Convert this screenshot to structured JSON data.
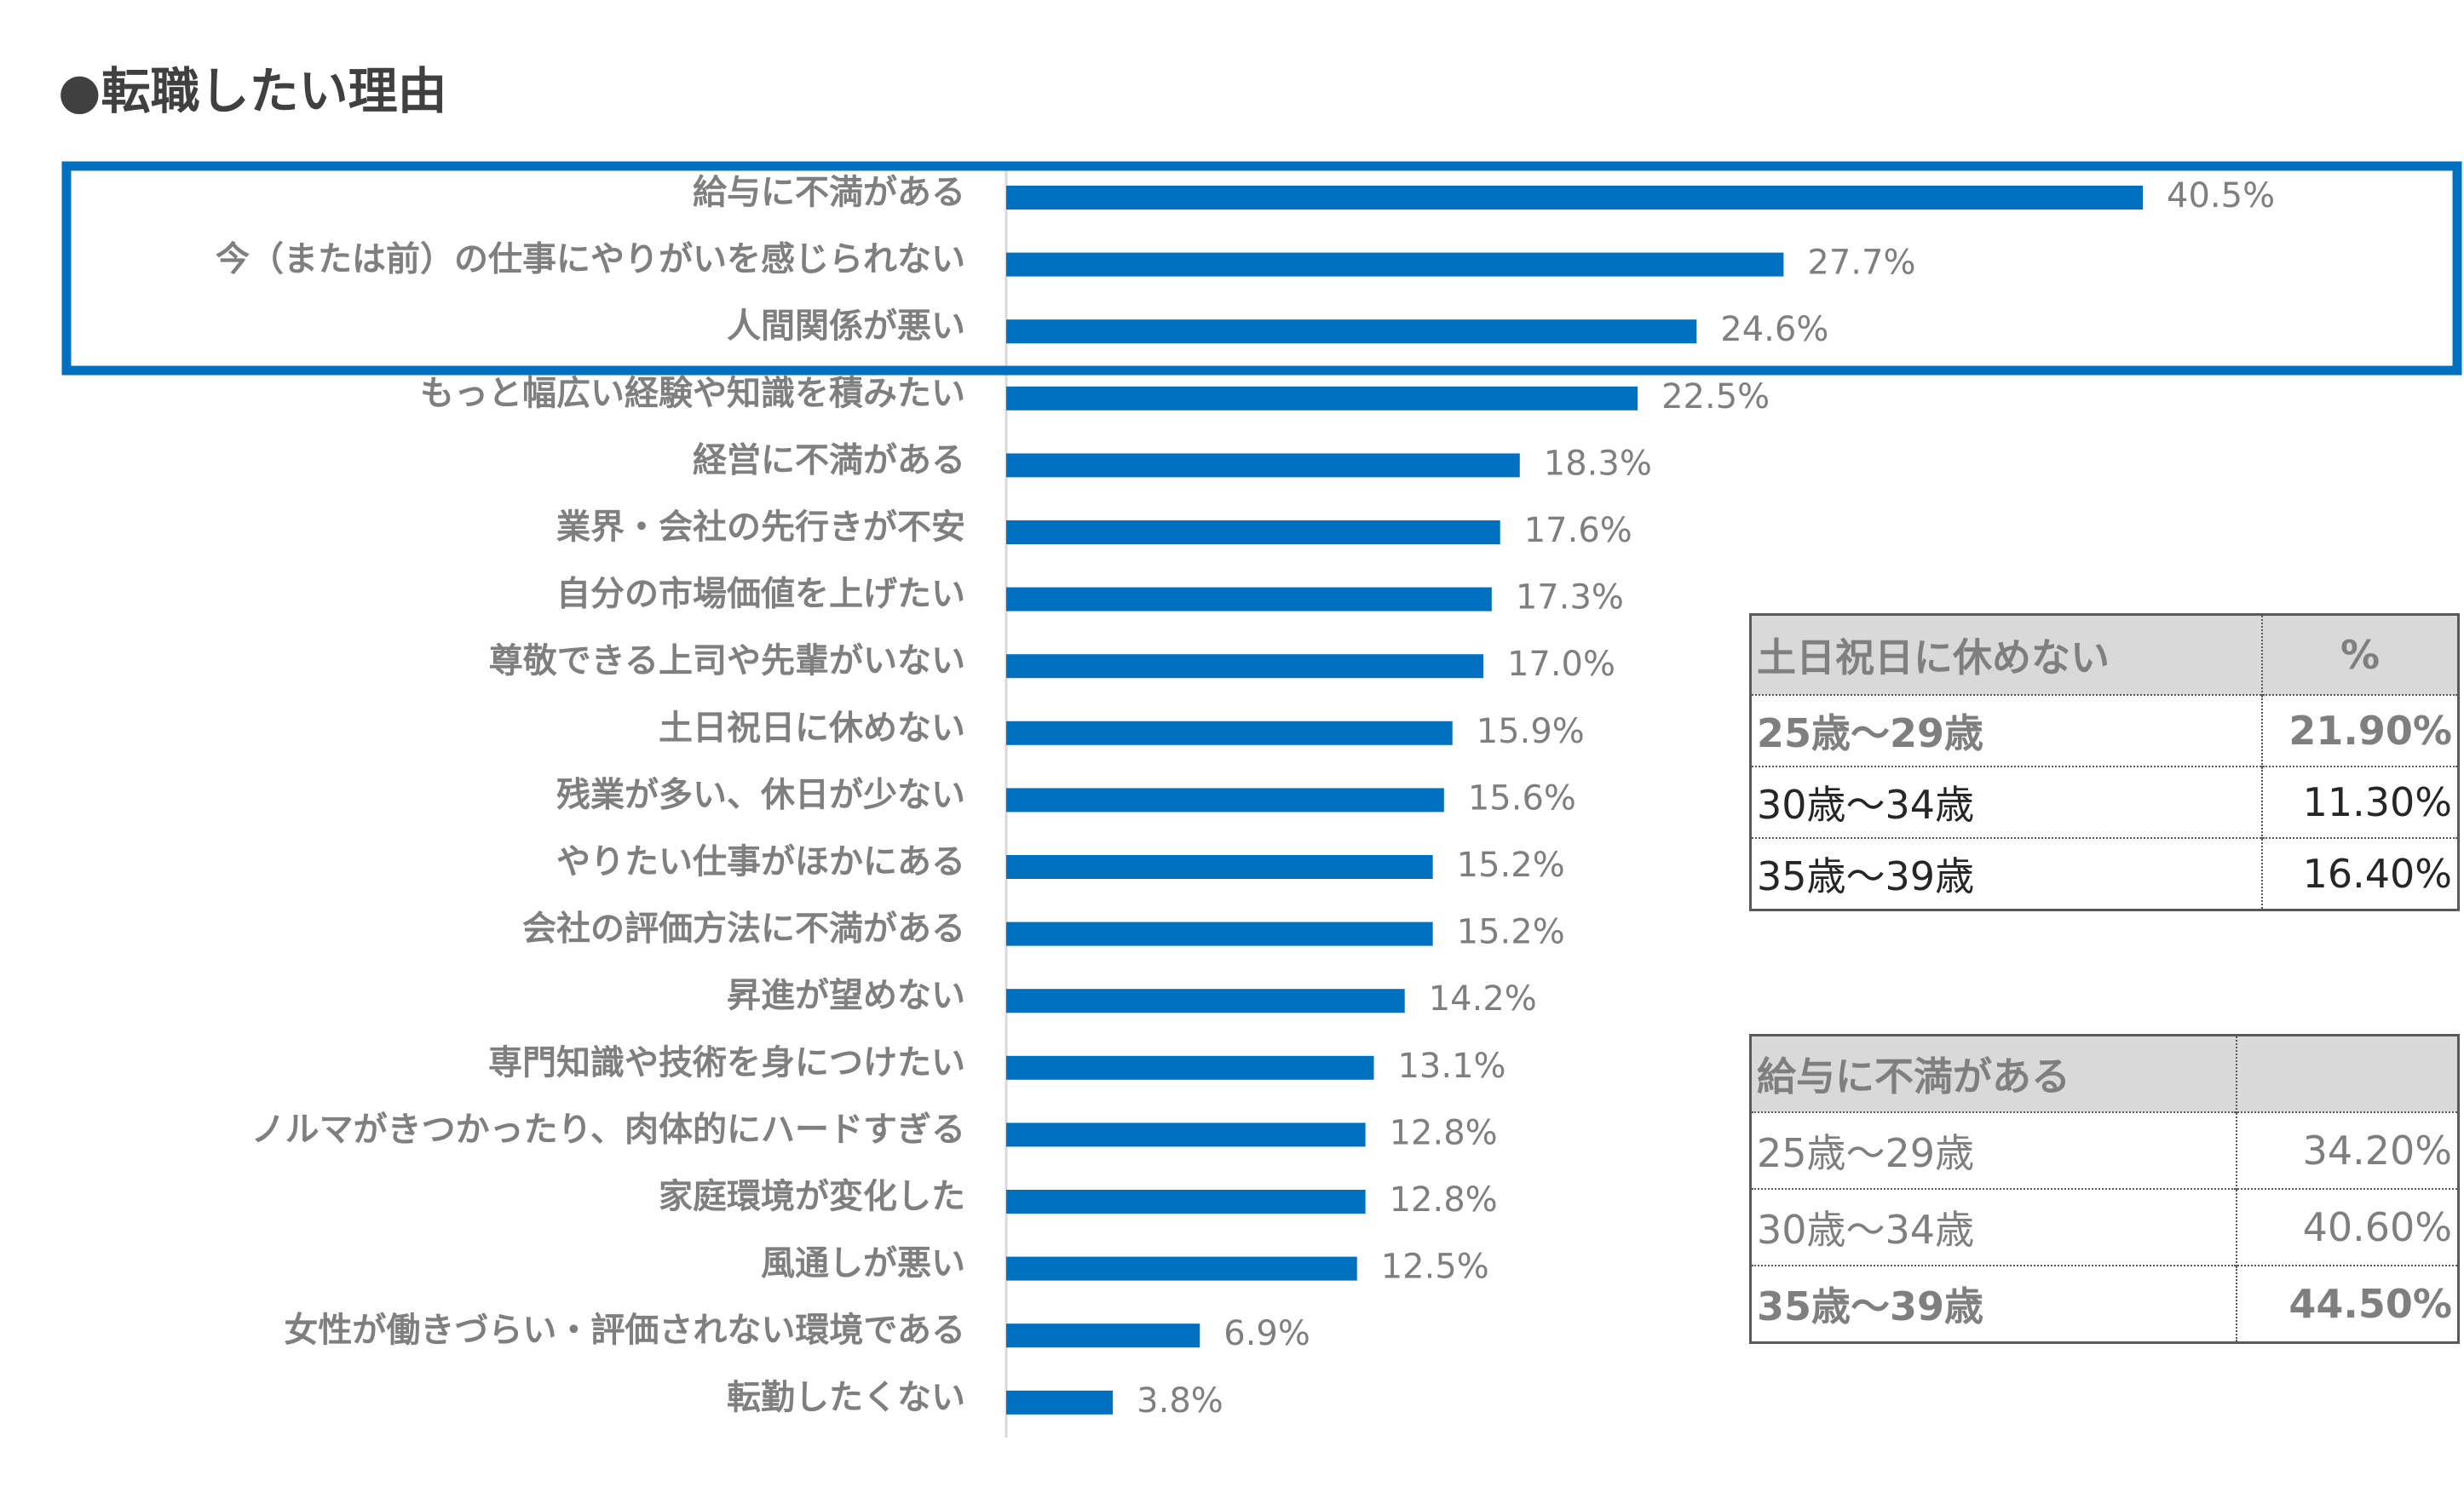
{
  "title": "●転職したい理由",
  "chart_data": {
    "type": "bar",
    "orientation": "horizontal",
    "color": "#0070c0",
    "categories": [
      "給与に不満がある",
      "今（または前）の仕事にやりがいを感じられない",
      "人間関係が悪い",
      "もっと幅広い経験や知識を積みたい",
      "経営に不満がある",
      "業界・会社の先行きが不安",
      "自分の市場価値を上げたい",
      "尊敬できる上司や先輩がいない",
      "土日祝日に休めない",
      "残業が多い、休日が少ない",
      "やりたい仕事がほかにある",
      "会社の評価方法に不満がある",
      "昇進が望めない",
      "専門知識や技術を身につけたい",
      "ノルマがきつかったり、肉体的にハードすぎる",
      "家庭環境が変化した",
      "風通しが悪い",
      "女性が働きづらい・評価されない環境である",
      "転勤したくない"
    ],
    "values": [
      40.5,
      27.7,
      24.6,
      22.5,
      18.3,
      17.6,
      17.3,
      17.0,
      15.9,
      15.6,
      15.2,
      15.2,
      14.2,
      13.1,
      12.8,
      12.8,
      12.5,
      6.9,
      3.8
    ],
    "value_labels": [
      "40.5%",
      "27.7%",
      "24.6%",
      "22.5%",
      "18.3%",
      "17.6%",
      "17.3%",
      "17.0%",
      "15.9%",
      "15.6%",
      "15.2%",
      "15.2%",
      "14.2%",
      "13.1%",
      "12.8%",
      "12.8%",
      "12.5%",
      "6.9%",
      "3.8%"
    ]
  },
  "tables": [
    {
      "header": [
        "土日祝日に休めない",
        "%"
      ],
      "rows": [
        [
          "25歳～29歳",
          "21.90%"
        ],
        [
          "30歳～34歳",
          "11.30%"
        ],
        [
          "35歳～39歳",
          "16.40%"
        ]
      ]
    },
    {
      "header": [
        "給与に不満がある"
      ],
      "rows": [
        [
          "25歳～29歳",
          "34.20%"
        ],
        [
          "30歳～34歳",
          "40.60%"
        ],
        [
          "35歳～39歳",
          "44.50%"
        ]
      ]
    }
  ]
}
